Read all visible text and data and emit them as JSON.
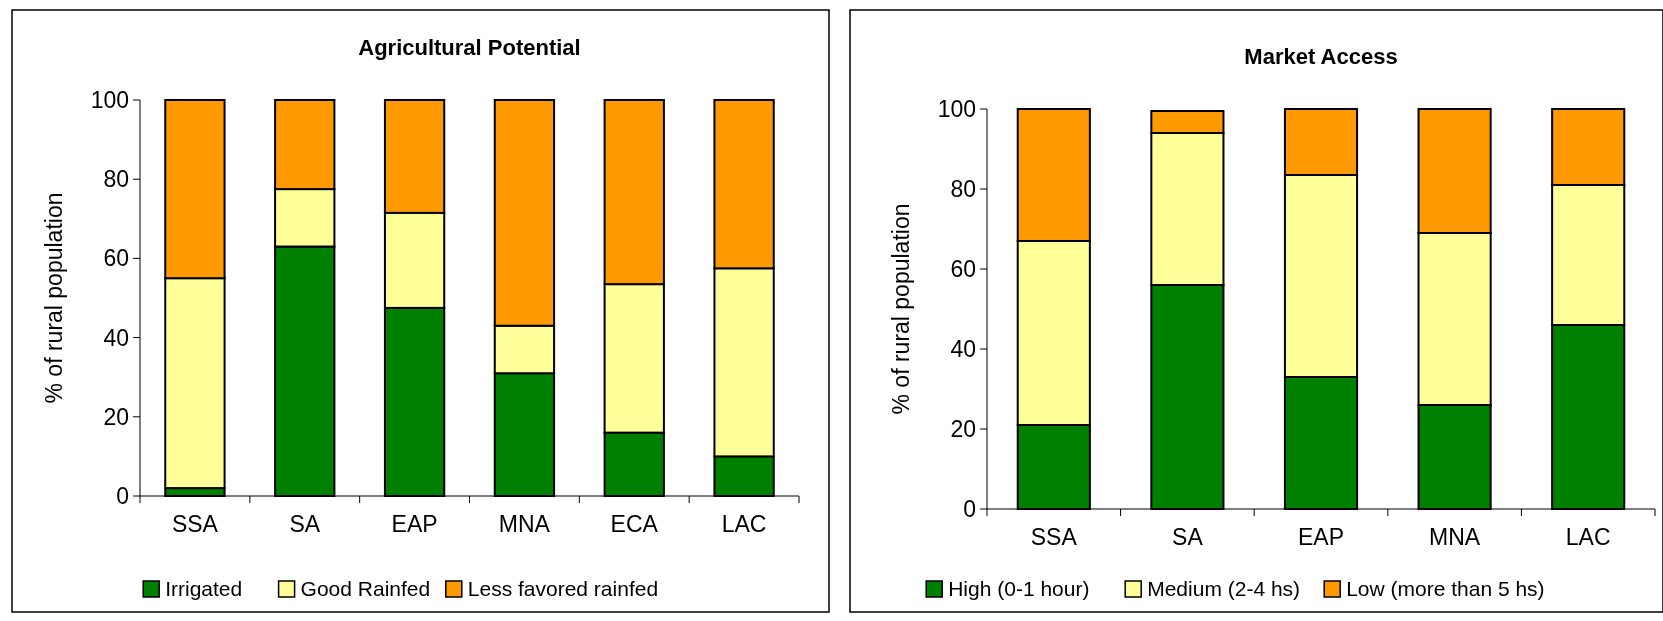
{
  "chart_data": [
    {
      "type": "bar",
      "title": "Agricultural Potential",
      "ylabel": "% of rural population",
      "categories": [
        "SSA",
        "SA",
        "EAP",
        "MNA",
        "ECA",
        "LAC"
      ],
      "stacked": true,
      "ylim": [
        0,
        100
      ],
      "yticks": [
        0,
        20,
        40,
        60,
        80,
        100
      ],
      "grid": false,
      "legend": "bottom",
      "series": [
        {
          "name": "Irrigated",
          "color": "#008000",
          "values": [
            2,
            63,
            47.5,
            31,
            16,
            10
          ]
        },
        {
          "name": "Good Rainfed",
          "color": "#ffff99",
          "values": [
            53,
            14.5,
            24,
            12,
            37.5,
            47.5
          ]
        },
        {
          "name": "Less favored rainfed",
          "color": "#ff9900",
          "values": [
            45,
            22.5,
            28.5,
            57,
            46.5,
            42.5
          ]
        }
      ]
    },
    {
      "type": "bar",
      "title": "Market Access",
      "ylabel": "% of rural population",
      "categories": [
        "SSA",
        "SA",
        "EAP",
        "MNA",
        "LAC"
      ],
      "stacked": true,
      "ylim": [
        0,
        100
      ],
      "yticks": [
        0,
        20,
        40,
        60,
        80,
        100
      ],
      "grid": false,
      "legend": "bottom",
      "series": [
        {
          "name": "High (0-1 hour)",
          "color": "#008000",
          "values": [
            21,
            56,
            33,
            26,
            46
          ]
        },
        {
          "name": "Medium (2-4 hs)",
          "color": "#ffff99",
          "values": [
            46,
            38,
            50.5,
            43,
            35
          ]
        },
        {
          "name": "Low  (more than 5 hs)",
          "color": "#ff9900",
          "values": [
            33,
            5.5,
            16.5,
            31,
            19
          ]
        }
      ]
    }
  ]
}
